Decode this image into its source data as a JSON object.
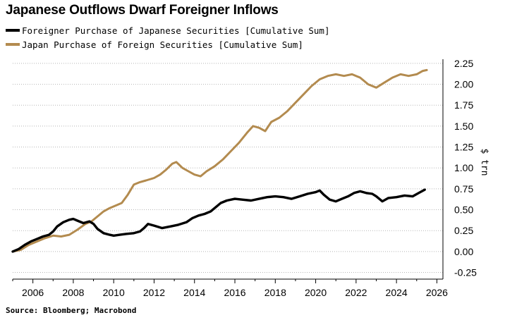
{
  "chart_data": {
    "type": "line",
    "title": "Japanese Outflows Dwarf Foreigner Inflows",
    "ylabel": "$ trn",
    "source": "Source: Bloomberg; Macrobond",
    "xlim": [
      2005,
      2026.3
    ],
    "ylim": [
      -0.33,
      2.3
    ],
    "xticks": [
      2006,
      2008,
      2010,
      2012,
      2014,
      2016,
      2018,
      2020,
      2022,
      2024,
      2026
    ],
    "yticks": [
      -0.25,
      0,
      0.25,
      0.5,
      0.75,
      1.0,
      1.25,
      1.5,
      1.75,
      2.0,
      2.25
    ],
    "ytick_labels": [
      "-0.25",
      "0.00",
      "0.25",
      "0.50",
      "0.75",
      "1.00",
      "1.25",
      "1.50",
      "1.75",
      "2.00",
      "2.25"
    ],
    "grid": "horizontal-dotted",
    "legend_position": "top-left",
    "series": [
      {
        "name": "Foreigner Purchase of Japanese Securities [Cumulative Sum]",
        "color": "#000000",
        "points": [
          [
            2005.0,
            0.0
          ],
          [
            2005.3,
            0.03
          ],
          [
            2005.6,
            0.08
          ],
          [
            2005.9,
            0.12
          ],
          [
            2006.2,
            0.15
          ],
          [
            2006.5,
            0.18
          ],
          [
            2006.8,
            0.2
          ],
          [
            2007.0,
            0.24
          ],
          [
            2007.2,
            0.3
          ],
          [
            2007.5,
            0.35
          ],
          [
            2007.8,
            0.38
          ],
          [
            2008.0,
            0.39
          ],
          [
            2008.2,
            0.37
          ],
          [
            2008.5,
            0.34
          ],
          [
            2008.8,
            0.36
          ],
          [
            2009.0,
            0.33
          ],
          [
            2009.2,
            0.27
          ],
          [
            2009.5,
            0.22
          ],
          [
            2009.8,
            0.2
          ],
          [
            2010.0,
            0.19
          ],
          [
            2010.3,
            0.2
          ],
          [
            2010.6,
            0.21
          ],
          [
            2011.0,
            0.22
          ],
          [
            2011.3,
            0.24
          ],
          [
            2011.5,
            0.28
          ],
          [
            2011.7,
            0.33
          ],
          [
            2012.0,
            0.31
          ],
          [
            2012.4,
            0.28
          ],
          [
            2012.8,
            0.3
          ],
          [
            2013.2,
            0.32
          ],
          [
            2013.6,
            0.35
          ],
          [
            2013.9,
            0.4
          ],
          [
            2014.2,
            0.43
          ],
          [
            2014.5,
            0.45
          ],
          [
            2014.8,
            0.48
          ],
          [
            2015.0,
            0.52
          ],
          [
            2015.3,
            0.58
          ],
          [
            2015.6,
            0.61
          ],
          [
            2016.0,
            0.63
          ],
          [
            2016.4,
            0.62
          ],
          [
            2016.8,
            0.61
          ],
          [
            2017.2,
            0.63
          ],
          [
            2017.6,
            0.65
          ],
          [
            2018.0,
            0.66
          ],
          [
            2018.4,
            0.65
          ],
          [
            2018.8,
            0.63
          ],
          [
            2019.2,
            0.66
          ],
          [
            2019.6,
            0.69
          ],
          [
            2020.0,
            0.71
          ],
          [
            2020.2,
            0.73
          ],
          [
            2020.4,
            0.68
          ],
          [
            2020.7,
            0.62
          ],
          [
            2021.0,
            0.6
          ],
          [
            2021.3,
            0.63
          ],
          [
            2021.6,
            0.66
          ],
          [
            2021.9,
            0.7
          ],
          [
            2022.2,
            0.72
          ],
          [
            2022.5,
            0.7
          ],
          [
            2022.8,
            0.69
          ],
          [
            2023.0,
            0.66
          ],
          [
            2023.3,
            0.6
          ],
          [
            2023.6,
            0.64
          ],
          [
            2024.0,
            0.65
          ],
          [
            2024.4,
            0.67
          ],
          [
            2024.8,
            0.66
          ],
          [
            2025.1,
            0.7
          ],
          [
            2025.4,
            0.74
          ]
        ]
      },
      {
        "name": "Japan Purchase of Foreign Securities [Cumulative Sum]",
        "color": "#b38b4f",
        "points": [
          [
            2005.0,
            0.0
          ],
          [
            2005.4,
            0.02
          ],
          [
            2005.8,
            0.08
          ],
          [
            2006.2,
            0.12
          ],
          [
            2006.6,
            0.16
          ],
          [
            2007.0,
            0.19
          ],
          [
            2007.4,
            0.18
          ],
          [
            2007.8,
            0.2
          ],
          [
            2008.2,
            0.26
          ],
          [
            2008.6,
            0.33
          ],
          [
            2008.9,
            0.36
          ],
          [
            2009.2,
            0.42
          ],
          [
            2009.5,
            0.48
          ],
          [
            2009.8,
            0.52
          ],
          [
            2010.1,
            0.55
          ],
          [
            2010.4,
            0.58
          ],
          [
            2010.7,
            0.68
          ],
          [
            2011.0,
            0.8
          ],
          [
            2011.3,
            0.83
          ],
          [
            2011.6,
            0.85
          ],
          [
            2012.0,
            0.88
          ],
          [
            2012.3,
            0.92
          ],
          [
            2012.6,
            0.98
          ],
          [
            2012.9,
            1.05
          ],
          [
            2013.1,
            1.07
          ],
          [
            2013.4,
            1.0
          ],
          [
            2013.7,
            0.96
          ],
          [
            2014.0,
            0.92
          ],
          [
            2014.3,
            0.9
          ],
          [
            2014.6,
            0.96
          ],
          [
            2015.0,
            1.02
          ],
          [
            2015.4,
            1.1
          ],
          [
            2015.8,
            1.2
          ],
          [
            2016.2,
            1.3
          ],
          [
            2016.6,
            1.42
          ],
          [
            2016.9,
            1.5
          ],
          [
            2017.2,
            1.48
          ],
          [
            2017.5,
            1.44
          ],
          [
            2017.8,
            1.55
          ],
          [
            2018.2,
            1.6
          ],
          [
            2018.6,
            1.68
          ],
          [
            2019.0,
            1.78
          ],
          [
            2019.4,
            1.88
          ],
          [
            2019.8,
            1.98
          ],
          [
            2020.2,
            2.06
          ],
          [
            2020.6,
            2.1
          ],
          [
            2021.0,
            2.12
          ],
          [
            2021.4,
            2.1
          ],
          [
            2021.8,
            2.12
          ],
          [
            2022.2,
            2.08
          ],
          [
            2022.6,
            2.0
          ],
          [
            2023.0,
            1.96
          ],
          [
            2023.4,
            2.02
          ],
          [
            2023.8,
            2.08
          ],
          [
            2024.2,
            2.12
          ],
          [
            2024.6,
            2.1
          ],
          [
            2025.0,
            2.12
          ],
          [
            2025.3,
            2.16
          ],
          [
            2025.5,
            2.17
          ]
        ]
      }
    ]
  }
}
